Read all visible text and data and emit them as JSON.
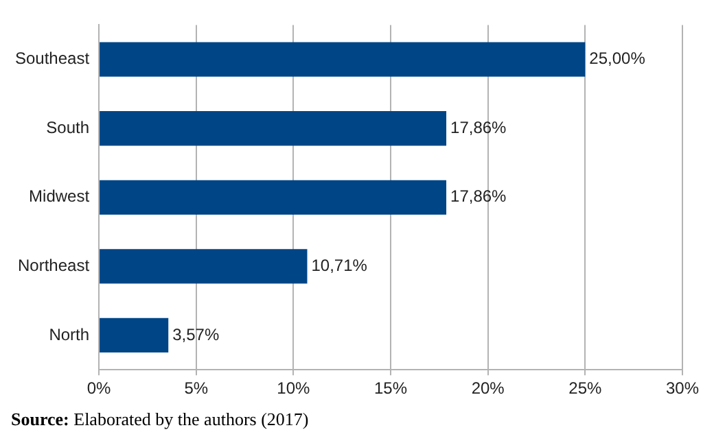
{
  "chart_data": {
    "type": "bar",
    "orientation": "horizontal",
    "categories": [
      "Southeast",
      "South",
      "Midwest",
      "Northeast",
      "North"
    ],
    "values": [
      25,
      17.86,
      17.86,
      10.71,
      3.57
    ],
    "value_labels": [
      "25,00%",
      "17,86%",
      "17,86%",
      "10,71%",
      "3,57%"
    ],
    "color": "#004586",
    "xlim": [
      0,
      30
    ],
    "xticks": [
      {
        "value": 0,
        "label": "0%"
      },
      {
        "value": 5,
        "label": "5%"
      },
      {
        "value": 10,
        "label": "10%"
      },
      {
        "value": 15,
        "label": "15%"
      },
      {
        "value": 20,
        "label": "20%"
      },
      {
        "value": 25,
        "label": "25%"
      },
      {
        "value": 30,
        "label": "30%"
      }
    ],
    "grid": "x",
    "legend": false,
    "annotations": [
      "Source: Elaborated by the authors (2017)"
    ]
  }
}
